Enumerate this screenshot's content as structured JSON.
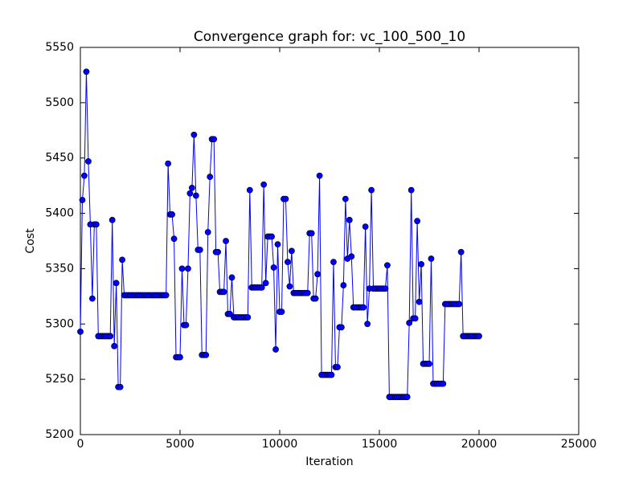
{
  "chart_data": {
    "type": "line",
    "title": "Convergence graph for: vc_100_500_10",
    "xlabel": "Iteration",
    "ylabel": "Cost",
    "color": "#0000ff",
    "marker": "circle",
    "xlim": [
      0,
      25000
    ],
    "xticks": [
      0,
      5000,
      10000,
      15000,
      20000,
      25000
    ],
    "ylim": [
      5200,
      5550
    ],
    "yticks": [
      5200,
      5250,
      5300,
      5350,
      5400,
      5450,
      5500,
      5550
    ],
    "x": [
      0,
      100,
      200,
      300,
      400,
      500,
      600,
      700,
      800,
      900,
      1000,
      1100,
      1200,
      1300,
      1400,
      1500,
      1600,
      1700,
      1800,
      1900,
      2000,
      2100,
      2200,
      2300,
      2400,
      2500,
      2600,
      2700,
      2800,
      2900,
      3000,
      3100,
      3200,
      3300,
      3400,
      3500,
      3600,
      3700,
      3800,
      3900,
      4000,
      4100,
      4200,
      4300,
      4400,
      4500,
      4600,
      4700,
      4800,
      4900,
      5000,
      5100,
      5200,
      5300,
      5400,
      5500,
      5600,
      5700,
      5800,
      5900,
      6000,
      6100,
      6200,
      6300,
      6400,
      6500,
      6600,
      6700,
      6800,
      6900,
      7000,
      7100,
      7200,
      7300,
      7400,
      7500,
      7600,
      7700,
      7800,
      7900,
      8000,
      8100,
      8200,
      8300,
      8400,
      8500,
      8600,
      8700,
      8800,
      8900,
      9000,
      9100,
      9200,
      9300,
      9400,
      9500,
      9600,
      9700,
      9800,
      9900,
      10000,
      10100,
      10200,
      10300,
      10400,
      10500,
      10600,
      10700,
      10800,
      10900,
      11000,
      11100,
      11200,
      11300,
      11400,
      11500,
      11600,
      11700,
      11800,
      11900,
      12000,
      12100,
      12200,
      12300,
      12400,
      12500,
      12600,
      12700,
      12800,
      12900,
      13000,
      13100,
      13200,
      13300,
      13400,
      13500,
      13600,
      13700,
      13800,
      13900,
      14000,
      14100,
      14200,
      14300,
      14400,
      14500,
      14600,
      14700,
      14800,
      14900,
      15000,
      15100,
      15200,
      15300,
      15400,
      15500,
      15600,
      15700,
      15800,
      15900,
      16000,
      16100,
      16200,
      16300,
      16400,
      16500,
      16600,
      16700,
      16800,
      16900,
      17000,
      17100,
      17200,
      17300,
      17400,
      17500,
      17600,
      17700,
      17800,
      17900,
      18000,
      18100,
      18200,
      18300,
      18400,
      18500,
      18600,
      18700,
      18800,
      18900,
      19000,
      19100,
      19200,
      19300,
      19400,
      19500,
      19600,
      19700,
      19800,
      19900,
      20000
    ],
    "values": [
      5293,
      5412,
      5434,
      5528,
      5447,
      5390,
      5323,
      5390,
      5390,
      5289,
      5289,
      5289,
      5289,
      5289,
      5289,
      5289,
      5394,
      5280,
      5337,
      5243,
      5243,
      5358,
      5326,
      5326,
      5326,
      5326,
      5326,
      5326,
      5326,
      5326,
      5326,
      5326,
      5326,
      5326,
      5326,
      5326,
      5326,
      5326,
      5326,
      5326,
      5326,
      5326,
      5326,
      5326,
      5445,
      5399,
      5399,
      5377,
      5270,
      5270,
      5270,
      5350,
      5299,
      5299,
      5350,
      5418,
      5423,
      5471,
      5416,
      5367,
      5367,
      5272,
      5272,
      5272,
      5383,
      5433,
      5467,
      5467,
      5365,
      5365,
      5329,
      5329,
      5329,
      5375,
      5309,
      5309,
      5342,
      5306,
      5306,
      5306,
      5306,
      5306,
      5306,
      5306,
      5306,
      5421,
      5333,
      5333,
      5333,
      5333,
      5333,
      5333,
      5426,
      5337,
      5379,
      5379,
      5379,
      5351,
      5277,
      5372,
      5311,
      5311,
      5413,
      5413,
      5356,
      5334,
      5366,
      5328,
      5328,
      5328,
      5328,
      5328,
      5328,
      5328,
      5328,
      5382,
      5382,
      5323,
      5323,
      5345,
      5434,
      5254,
      5254,
      5254,
      5254,
      5254,
      5254,
      5356,
      5261,
      5261,
      5297,
      5297,
      5335,
      5413,
      5359,
      5394,
      5361,
      5315,
      5315,
      5315,
      5315,
      5315,
      5315,
      5388,
      5300,
      5332,
      5421,
      5332,
      5332,
      5332,
      5332,
      5332,
      5332,
      5332,
      5353,
      5234,
      5234,
      5234,
      5234,
      5234,
      5234,
      5234,
      5234,
      5234,
      5234,
      5301,
      5421,
      5305,
      5305,
      5393,
      5320,
      5354,
      5264,
      5264,
      5264,
      5264,
      5359,
      5246,
      5246,
      5246,
      5246,
      5246,
      5246,
      5318,
      5318,
      5318,
      5318,
      5318,
      5318,
      5318,
      5318,
      5365,
      5289,
      5289,
      5289,
      5289,
      5289,
      5289,
      5289,
      5289,
      5289
    ]
  }
}
